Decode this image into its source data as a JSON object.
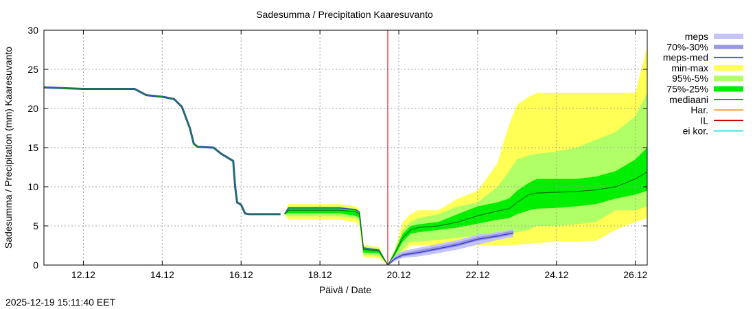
{
  "chart_data": {
    "type": "area",
    "title": "Sadesumma / Precipitation  Kaaresuvanto",
    "xlabel": "Päivä / Date",
    "ylabel": "Sadesumma / Precipitation (mm)  Kaaresuvanto",
    "timestamp": "2025-12-19 15:11:40 EET",
    "xlim": [
      11.0,
      26.3
    ],
    "ylim": [
      0,
      30
    ],
    "x_ticks": [
      {
        "value": 12,
        "label": "12.12"
      },
      {
        "value": 14,
        "label": "14.12"
      },
      {
        "value": 16,
        "label": "16.12"
      },
      {
        "value": 18,
        "label": "18.12"
      },
      {
        "value": 20,
        "label": "20.12"
      },
      {
        "value": 22,
        "label": "22.12"
      },
      {
        "value": 24,
        "label": "24.12"
      },
      {
        "value": 26,
        "label": "26.12"
      }
    ],
    "y_ticks": [
      0,
      5,
      10,
      15,
      20,
      25,
      30
    ],
    "forecast_start_x": 19.72,
    "colors": {
      "meps": "#c4c4f8",
      "meps_7030": "#9898e0",
      "meps_med": "#4040d0",
      "minmax": "#ffff55",
      "p95_5": "#b0ff66",
      "p75_25": "#00ee00",
      "median": "#007700",
      "har": "#ff8800",
      "il": "#cc0000",
      "eikor": "#00e0e0"
    },
    "legend": [
      {
        "label": "meps",
        "color_key": "meps",
        "style": "band"
      },
      {
        "label": "70%-30%",
        "color_key": "meps_7030",
        "style": "thickline"
      },
      {
        "label": "meps-med",
        "color_key": "meps_med",
        "style": "line"
      },
      {
        "label": "min-max",
        "color_key": "minmax",
        "style": "band"
      },
      {
        "label": "95%-5%",
        "color_key": "p95_5",
        "style": "band"
      },
      {
        "label": "75%-25%",
        "color_key": "p75_25",
        "style": "band"
      },
      {
        "label": "mediaani",
        "color_key": "median",
        "style": "line"
      },
      {
        "label": "Har.",
        "color_key": "har",
        "style": "line"
      },
      {
        "label": "IL",
        "color_key": "il",
        "style": "line"
      },
      {
        "label": "ei kor.",
        "color_key": "eikor",
        "style": "line"
      }
    ],
    "history": {
      "x": [
        11.0,
        11.5,
        12.0,
        13.0,
        13.3,
        13.6,
        14.0,
        14.3,
        14.5,
        14.7,
        14.8,
        14.9,
        15.3,
        15.5,
        15.8,
        15.85,
        15.9,
        16.0,
        16.1,
        16.2,
        16.5,
        16.7,
        17.0
      ],
      "y": [
        22.7,
        22.6,
        22.5,
        22.5,
        22.5,
        21.7,
        21.5,
        21.2,
        20.2,
        17.5,
        15.5,
        15.1,
        15.0,
        14.2,
        13.3,
        10.0,
        8.0,
        7.7,
        6.6,
        6.5,
        6.5,
        6.5,
        6.5
      ]
    },
    "prev_forecast": {
      "x": [
        17.1,
        17.2,
        18.0,
        18.5,
        18.9,
        19.0,
        19.1,
        19.5,
        19.72
      ],
      "median": [
        6.5,
        7.0,
        7.0,
        7.0,
        6.8,
        6.5,
        2.0,
        1.8,
        0
      ],
      "meps_med": [
        6.5,
        7.3,
        7.3,
        7.3,
        7.1,
        6.8,
        2.2,
        1.9,
        0
      ],
      "minmax_lo": [
        6.5,
        5.8,
        5.8,
        5.8,
        5.5,
        5.0,
        1.0,
        0.9,
        0
      ],
      "minmax_hi": [
        6.5,
        7.8,
        7.8,
        7.8,
        7.5,
        7.2,
        2.6,
        2.3,
        0
      ],
      "p95_lo": [
        6.5,
        6.2,
        6.2,
        6.2,
        6.0,
        5.6,
        1.3,
        1.2,
        0
      ],
      "p95_hi": [
        6.5,
        7.5,
        7.5,
        7.5,
        7.2,
        6.9,
        2.4,
        2.1,
        0
      ],
      "p75_lo": [
        6.5,
        6.6,
        6.6,
        6.6,
        6.3,
        6.0,
        1.6,
        1.5,
        0
      ],
      "p75_hi": [
        6.5,
        7.3,
        7.3,
        7.3,
        7.1,
        6.8,
        2.2,
        2.0,
        0
      ]
    },
    "forecast": {
      "x": [
        19.72,
        19.9,
        20.1,
        20.3,
        20.5,
        21.0,
        21.5,
        22.0,
        22.5,
        22.8,
        23.0,
        23.3,
        23.5,
        24.0,
        24.5,
        25.0,
        25.5,
        26.0,
        26.3
      ],
      "median": [
        0,
        1.5,
        3.5,
        4.5,
        4.8,
        5.0,
        5.5,
        6.3,
        6.9,
        7.2,
        8.0,
        9.0,
        9.2,
        9.3,
        9.4,
        9.6,
        10.0,
        11.0,
        11.9
      ],
      "minmax_lo": [
        0,
        0.5,
        1.5,
        2.5,
        2.5,
        2.5,
        2.5,
        2.5,
        2.5,
        2.5,
        2.6,
        2.7,
        2.8,
        3.0,
        3.0,
        3.1,
        4.5,
        5.5,
        6.0
      ],
      "minmax_hi": [
        0,
        2.0,
        5.5,
        6.5,
        7.0,
        7.0,
        8.5,
        9.5,
        13.0,
        18.0,
        20.5,
        21.5,
        22.0,
        22.0,
        22.0,
        22.0,
        22.0,
        22.0,
        28.0
      ],
      "p95_lo": [
        0,
        0.8,
        2.0,
        3.0,
        3.0,
        3.2,
        3.5,
        3.8,
        4.0,
        4.0,
        4.2,
        4.5,
        5.0,
        5.0,
        5.2,
        5.5,
        7.0,
        7.0,
        7.5
      ],
      "p95_hi": [
        0,
        1.8,
        4.5,
        5.5,
        6.0,
        6.5,
        7.5,
        8.0,
        10.0,
        12.0,
        13.5,
        14.0,
        14.2,
        14.5,
        15.0,
        16.0,
        17.0,
        19.0,
        22.0
      ],
      "p75_lo": [
        0,
        1.2,
        3.0,
        4.0,
        4.2,
        4.5,
        4.8,
        5.3,
        5.8,
        6.0,
        6.5,
        7.0,
        7.2,
        7.3,
        7.5,
        7.8,
        8.5,
        9.0,
        9.5
      ],
      "p75_hi": [
        0,
        1.8,
        4.0,
        5.0,
        5.2,
        5.5,
        6.5,
        7.5,
        8.0,
        8.5,
        9.5,
        10.5,
        11.0,
        11.0,
        11.0,
        11.3,
        12.0,
        13.5,
        15.0
      ]
    },
    "meps": {
      "x": [
        19.72,
        19.9,
        20.1,
        20.5,
        21.0,
        21.5,
        22.0,
        22.5,
        22.9
      ],
      "median": [
        0,
        0.8,
        1.3,
        1.6,
        2.1,
        2.6,
        3.3,
        3.7,
        4.1
      ],
      "band_lo": [
        0,
        0.5,
        0.9,
        1.1,
        1.5,
        2.0,
        2.6,
        3.2,
        3.6
      ],
      "band_hi": [
        0,
        1.2,
        1.8,
        2.2,
        2.7,
        3.2,
        3.9,
        4.2,
        4.6
      ],
      "p70_lo": [
        0,
        0.7,
        1.1,
        1.4,
        1.9,
        2.4,
        3.1,
        3.5,
        3.9
      ],
      "p70_hi": [
        0,
        1.0,
        1.5,
        1.9,
        2.4,
        2.9,
        3.6,
        4.0,
        4.4
      ]
    }
  }
}
